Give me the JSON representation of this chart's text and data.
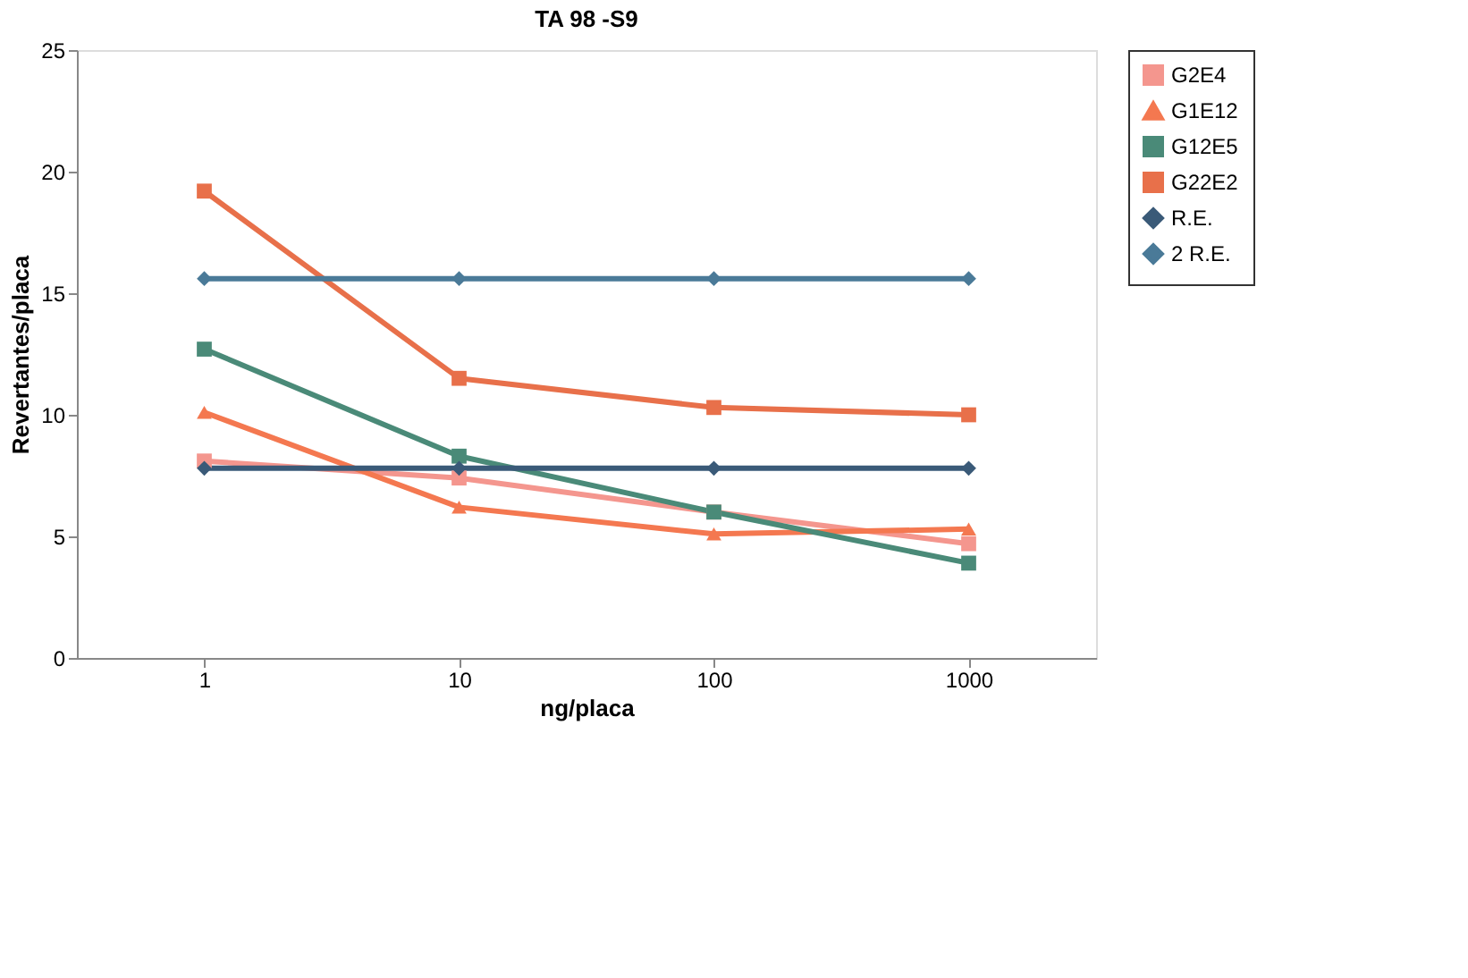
{
  "chart_data": {
    "type": "line",
    "title": "TA 98 -S9",
    "xlabel": "ng/placa",
    "ylabel": "Revertantes/placa",
    "categories": [
      "1",
      "10",
      "100",
      "1000"
    ],
    "ylim": [
      0,
      25
    ],
    "yticks": [
      0,
      5,
      10,
      15,
      20,
      25
    ],
    "grid": false,
    "legend": "right",
    "line_style": "solid",
    "series": [
      {
        "name": "G2E4",
        "color": "#f4968e",
        "marker": "square",
        "values": [
          8.1,
          7.4,
          6.0,
          4.7
        ]
      },
      {
        "name": "G1E12",
        "color": "#f47850",
        "marker": "triangle",
        "values": [
          10.1,
          6.2,
          5.1,
          5.3
        ]
      },
      {
        "name": "G12E5",
        "color": "#4a8a78",
        "marker": "square",
        "values": [
          12.7,
          8.3,
          6.0,
          3.9
        ]
      },
      {
        "name": "G22E2",
        "color": "#e8704a",
        "marker": "square",
        "values": [
          19.2,
          11.5,
          10.3,
          10.0
        ]
      },
      {
        "name": "R.E.",
        "color": "#3a5a78",
        "marker": "diamond",
        "values": [
          7.8,
          7.8,
          7.8,
          7.8
        ]
      },
      {
        "name": "2 R.E.",
        "color": "#4a7a98",
        "marker": "diamond",
        "values": [
          15.6,
          15.6,
          15.6,
          15.6
        ]
      }
    ]
  }
}
